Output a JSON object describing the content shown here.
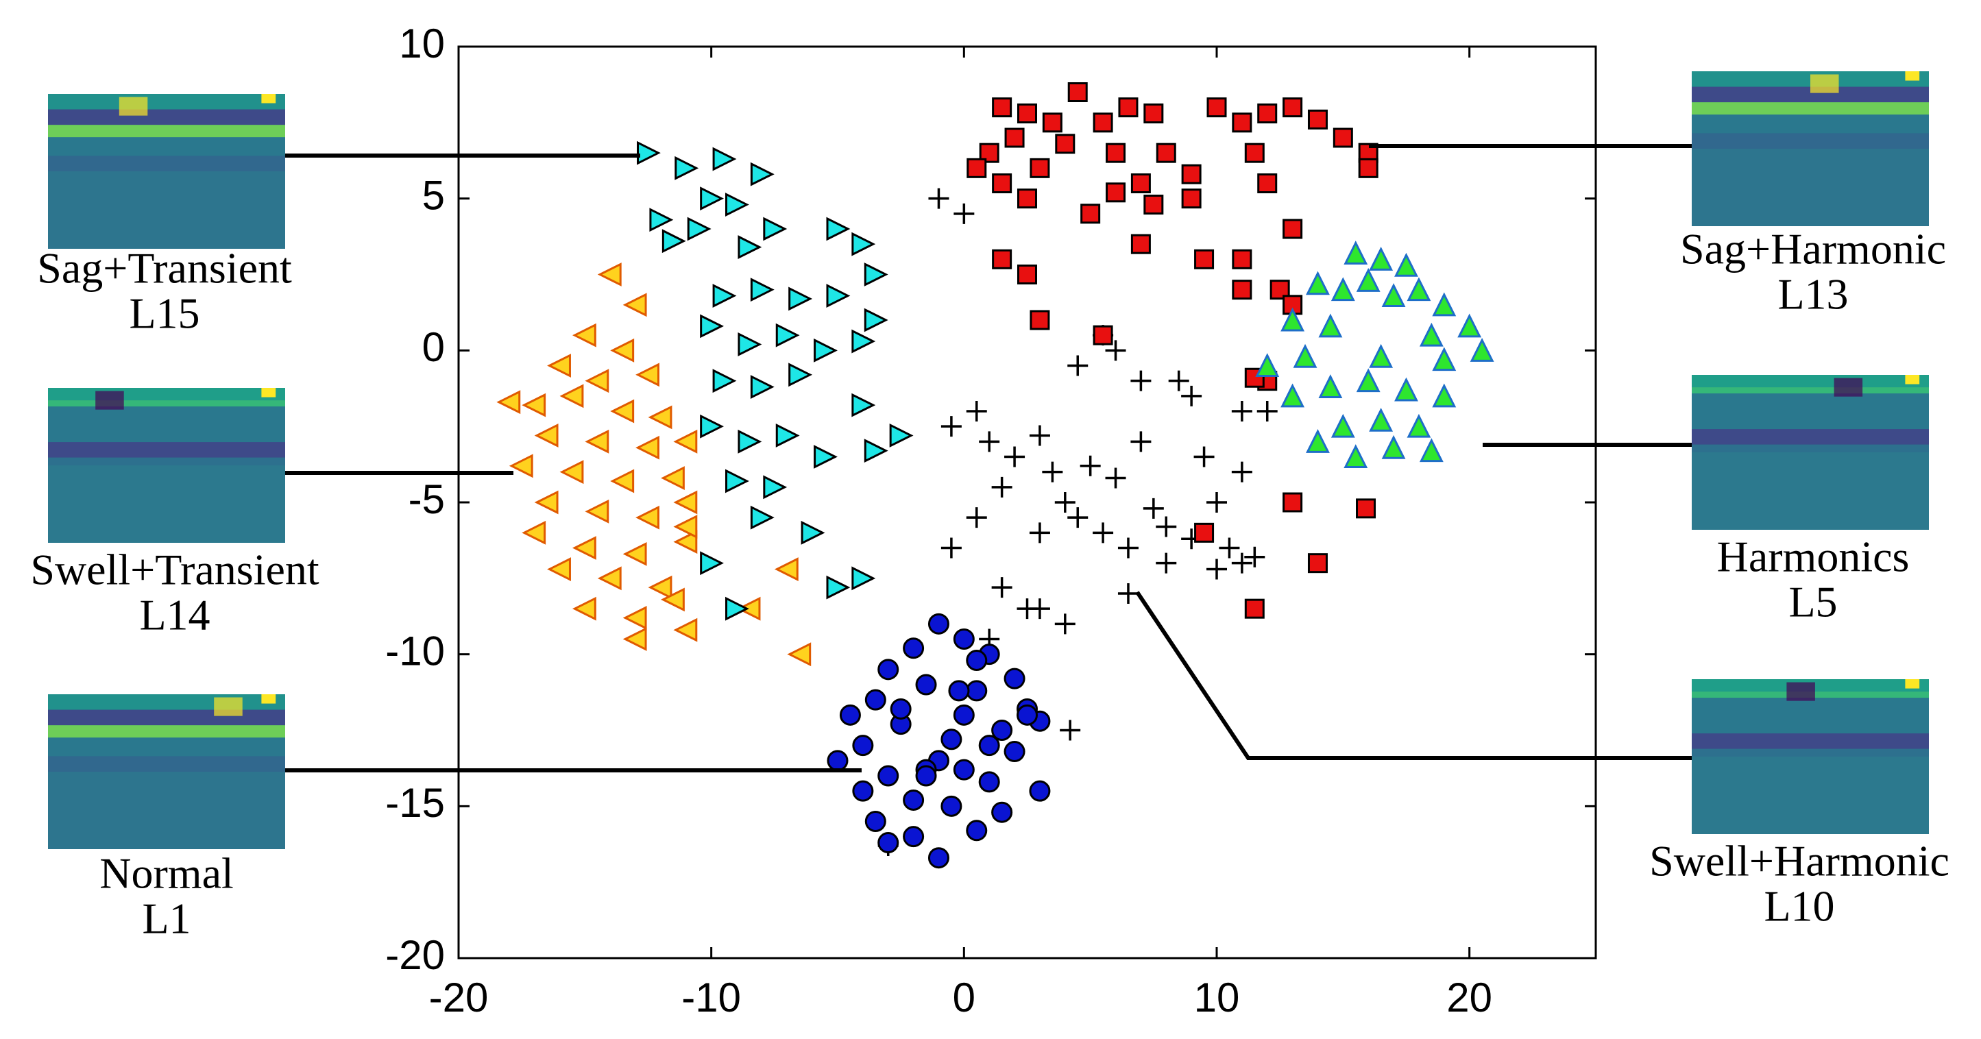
{
  "chart_data": {
    "type": "scatter",
    "xlim": [
      -20,
      25
    ],
    "ylim": [
      -20,
      10
    ],
    "xticks": [
      -20,
      -10,
      0,
      10,
      20
    ],
    "yticks": [
      -20,
      -15,
      -10,
      -5,
      0,
      5,
      10
    ],
    "series": [
      {
        "name": "Swell+Transient",
        "code": "L14",
        "marker": "triangle-left",
        "color": "#ffd21e",
        "edge": "#e05a00",
        "x": [
          -14,
          -13,
          -15,
          -13.5,
          -16,
          -14.5,
          -12.5,
          -17,
          -15.5,
          -13.5,
          -12,
          -18,
          -16.5,
          -14.5,
          -12.5,
          -11,
          -17.5,
          -15.5,
          -13.5,
          -11.5,
          -16.5,
          -14.5,
          -12.5,
          -11,
          -17,
          -15,
          -13,
          -11,
          -16,
          -14,
          -12,
          -15,
          -13,
          -11.5,
          -13,
          -11,
          -7,
          -8.5,
          -6.5,
          -11
        ],
        "y": [
          2.5,
          1.5,
          0.5,
          0,
          -0.5,
          -1,
          -0.8,
          -1.8,
          -1.5,
          -2,
          -2.2,
          -1.7,
          -2.8,
          -3,
          -3.2,
          -3,
          -3.8,
          -4,
          -4.3,
          -4.2,
          -5,
          -5.3,
          -5.5,
          -5,
          -6,
          -6.5,
          -6.7,
          -6.3,
          -7.2,
          -7.5,
          -7.8,
          -8.5,
          -8.8,
          -8.2,
          -9.5,
          -9.2,
          -7.2,
          -8.5,
          -10,
          -5.8
        ]
      },
      {
        "name": "Sag+Transient",
        "code": "L15",
        "marker": "triangle-right",
        "color": "#1ee6e6",
        "edge": "#000000",
        "x": [
          -12.5,
          -11,
          -9.5,
          -8,
          -10,
          -12,
          -9,
          -7.5,
          -11.5,
          -10.5,
          -8.5,
          -5,
          -4,
          -3.5,
          -9.5,
          -8,
          -6.5,
          -5,
          -3.5,
          -10,
          -8.5,
          -7,
          -5.5,
          -4,
          -9.5,
          -8,
          -6.5,
          -4,
          -2.5,
          -10,
          -8.5,
          -7,
          -5.5,
          -3.5,
          -9,
          -7.5,
          -10,
          -9,
          -5,
          -4,
          -8,
          -6
        ],
        "y": [
          6.5,
          6,
          6.3,
          5.8,
          5,
          4.3,
          4.8,
          4,
          3.6,
          4,
          3.4,
          4,
          3.5,
          2.5,
          1.8,
          2,
          1.7,
          1.8,
          1,
          0.8,
          0.2,
          0.5,
          0,
          0.3,
          -1,
          -1.2,
          -0.8,
          -1.8,
          -2.8,
          -2.5,
          -3,
          -2.8,
          -3.5,
          -3.3,
          -4.3,
          -4.5,
          -7,
          -8.5,
          -7.8,
          -7.5,
          -5.5,
          -6
        ]
      },
      {
        "name": "Swell+Harmonic",
        "code": "L10",
        "marker": "plus",
        "color": "#000000",
        "edge": "#000000",
        "x": [
          -1,
          0,
          5.5,
          6,
          4.5,
          7,
          8.5,
          9,
          -0.5,
          0.5,
          1,
          2,
          3,
          3.5,
          4,
          5,
          6,
          7,
          7.5,
          8,
          9.5,
          10,
          11,
          10.5,
          11.5,
          -0.5,
          0.5,
          1.5,
          3,
          4.5,
          5.5,
          6.5,
          8,
          9,
          10,
          11,
          1.5,
          3,
          2.5,
          4,
          1,
          -3,
          6.5,
          4.2,
          11,
          12
        ],
        "y": [
          5,
          4.5,
          0.5,
          0,
          -0.5,
          -1,
          -1,
          -1.5,
          -2.5,
          -2,
          -3,
          -3.5,
          -2.8,
          -4,
          -5,
          -3.8,
          -4.2,
          -3,
          -5.2,
          -5.8,
          -3.5,
          -5,
          -4,
          -6.5,
          -6.8,
          -6.5,
          -5.5,
          -4.5,
          -6,
          -5.5,
          -6,
          -6.5,
          -7,
          -6.2,
          -7.2,
          -7,
          -7.8,
          -8.5,
          -8.5,
          -9,
          -9.5,
          -16.3,
          -8,
          -12.5,
          -2,
          -2
        ]
      },
      {
        "name": "Sag+Harmonic",
        "code": "L13",
        "marker": "square",
        "color": "#e81010",
        "edge": "#000000",
        "x": [
          1.5,
          2.5,
          3.5,
          4.5,
          5.5,
          6.5,
          7.5,
          1,
          2,
          3,
          4,
          6,
          7,
          8,
          9,
          10,
          11,
          12,
          13,
          14,
          15,
          16,
          0.5,
          1.5,
          2.5,
          5,
          6,
          7.5,
          9,
          11.5,
          12,
          13,
          11,
          12.5,
          1.5,
          2.5,
          7,
          9.5,
          11,
          13,
          16,
          12,
          14,
          11.5,
          9.5,
          5.5,
          3,
          15.9,
          13,
          11.5
        ],
        "y": [
          8,
          7.8,
          7.5,
          8.5,
          7.5,
          8,
          7.8,
          6.5,
          7,
          6,
          6.8,
          6.5,
          5.5,
          6.5,
          5.8,
          8,
          7.5,
          7.8,
          8,
          7.6,
          7,
          6.5,
          6,
          5.5,
          5,
          4.5,
          5.2,
          4.8,
          5,
          6.5,
          5.5,
          4,
          3,
          2,
          3,
          2.5,
          3.5,
          3,
          2,
          1.5,
          6,
          -1,
          -7,
          -8.5,
          -6,
          0.5,
          1,
          -5.2,
          -5,
          -0.9
        ]
      },
      {
        "name": "Harmonics",
        "code": "L5",
        "marker": "triangle-up",
        "color": "#2ee62e",
        "edge": "#1e6ec8",
        "x": [
          15.5,
          16.5,
          17.5,
          14,
          15,
          16,
          17,
          18,
          19,
          13,
          14.5,
          18.5,
          20,
          12,
          13.5,
          19,
          20.5,
          13,
          14.5,
          16,
          17.5,
          19,
          15,
          16.5,
          18,
          14,
          17,
          15.5,
          18.5,
          16.5
        ],
        "y": [
          3.2,
          3,
          2.8,
          2.2,
          2,
          2.3,
          1.8,
          2,
          1.5,
          1,
          0.8,
          0.5,
          0.8,
          -0.5,
          -0.2,
          -0.3,
          0,
          -1.5,
          -1.2,
          -1,
          -1.3,
          -1.5,
          -2.5,
          -2.3,
          -2.5,
          -3,
          -3.2,
          -3.5,
          -3.3,
          -0.2
        ]
      },
      {
        "name": "Normal",
        "code": "L1",
        "marker": "circle",
        "color": "#0a14d2",
        "edge": "#000000",
        "x": [
          -1,
          0,
          -2,
          1,
          -3,
          2,
          -1.5,
          0.5,
          -3.5,
          2.5,
          -4.5,
          3,
          -2.5,
          1.5,
          -0.5,
          -4,
          2,
          -1,
          0,
          -3,
          1,
          -5,
          3,
          -2,
          -0.5,
          1.5,
          -3.5,
          0.5,
          -2,
          -1,
          2.5,
          -4,
          0.5,
          -1.5,
          -2.5,
          1,
          -3,
          0,
          -1.5,
          -0.2
        ],
        "y": [
          -9,
          -9.5,
          -9.8,
          -10,
          -10.5,
          -10.8,
          -11,
          -11.2,
          -11.5,
          -11.8,
          -12,
          -12.2,
          -12.3,
          -12.5,
          -12.8,
          -13,
          -13.2,
          -13.5,
          -13.8,
          -14,
          -14.2,
          -13.5,
          -14.5,
          -14.8,
          -15,
          -15.2,
          -15.5,
          -15.8,
          -16,
          -16.7,
          -12,
          -14.5,
          -10.2,
          -13.8,
          -11.8,
          -13,
          -16.2,
          -12,
          -14,
          -11.2
        ]
      }
    ]
  }
}
